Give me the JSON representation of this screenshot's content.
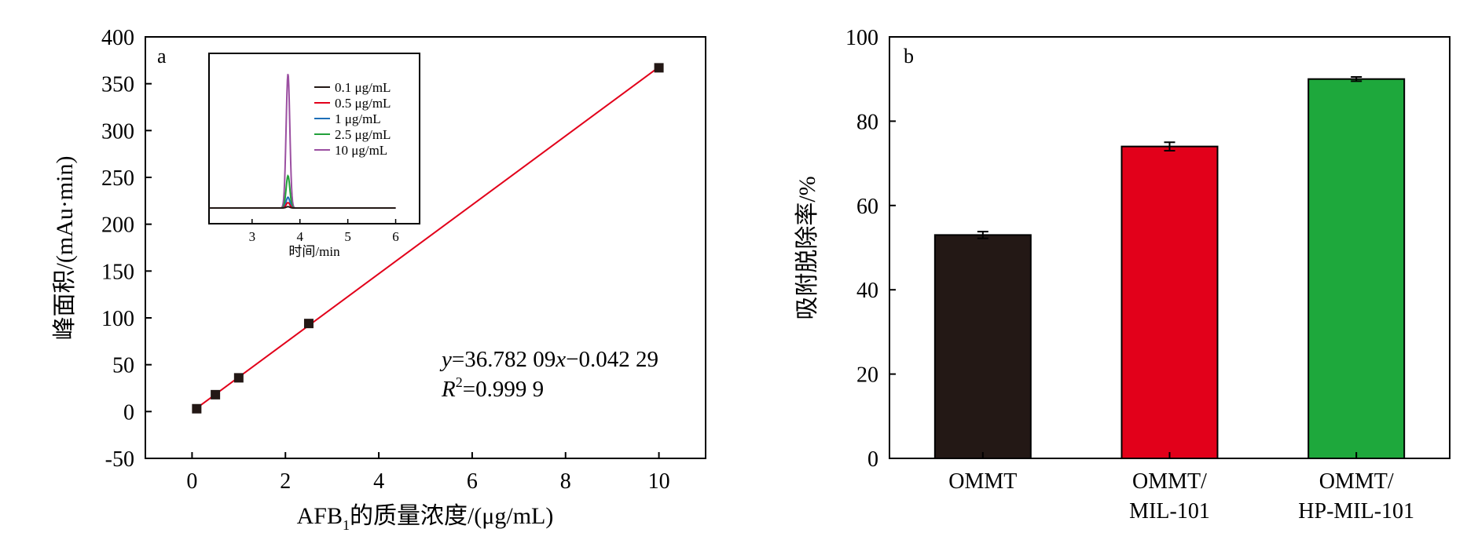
{
  "chart_data": [
    {
      "type": "scatter",
      "panel_label": "a",
      "xlabel_main": "AFB",
      "xlabel_sub": "1",
      "xlabel_rest": "的质量浓度/(μg/mL)",
      "ylabel": "峰面积/(mAu·min)",
      "xlim": [
        -1,
        11
      ],
      "ylim": [
        -50,
        400
      ],
      "xticks": [
        0,
        2,
        4,
        6,
        8,
        10
      ],
      "yticks": [
        -50,
        0,
        50,
        100,
        150,
        200,
        250,
        300,
        350,
        400
      ],
      "x": [
        0.1,
        0.5,
        1,
        2.5,
        10
      ],
      "y": [
        3,
        18,
        36,
        94,
        367
      ],
      "fit": {
        "slope": 36.78209,
        "intercept": -0.04229,
        "color": "#e2001a"
      },
      "equation": {
        "y": "y",
        "eq1": "=36.782 09",
        "x": "x",
        "eq2": "−0.042 29",
        "r": "R",
        "sup": "2",
        "eq3": "=0.999 9"
      },
      "grid": false,
      "inset": {
        "type": "line",
        "xlabel": "时间/min",
        "xlim": [
          2.1,
          6.5
        ],
        "xticks": [
          3,
          4,
          5,
          6
        ],
        "baseline": 0,
        "ymax": 100,
        "peak_center": 3.75,
        "series": [
          {
            "name": "0.1 μg/mL",
            "color": "#231815",
            "peak": 1
          },
          {
            "name": "0.5 μg/mL",
            "color": "#e2001a",
            "peak": 4
          },
          {
            "name": "1 μg/mL",
            "color": "#1d6fb8",
            "peak": 8
          },
          {
            "name": "2.5 μg/mL",
            "color": "#22a03a",
            "peak": 24
          },
          {
            "name": "10 μg/mL",
            "color": "#9b4fa1",
            "peak": 100
          }
        ],
        "legend_position": "top-right"
      }
    },
    {
      "type": "bar",
      "panel_label": "b",
      "ylabel": "吸附脱除率/%",
      "ylim": [
        0,
        100
      ],
      "yticks": [
        0,
        20,
        40,
        60,
        80,
        100
      ],
      "categories": [
        [
          "OMMT"
        ],
        [
          "OMMT/",
          "MIL-101"
        ],
        [
          "OMMT/",
          "HP-MIL-101"
        ]
      ],
      "values": [
        53,
        74,
        90
      ],
      "errors": [
        0.8,
        1.0,
        0.5
      ],
      "colors": [
        "#231815",
        "#e2001a",
        "#1ea83c"
      ],
      "grid": false
    }
  ]
}
